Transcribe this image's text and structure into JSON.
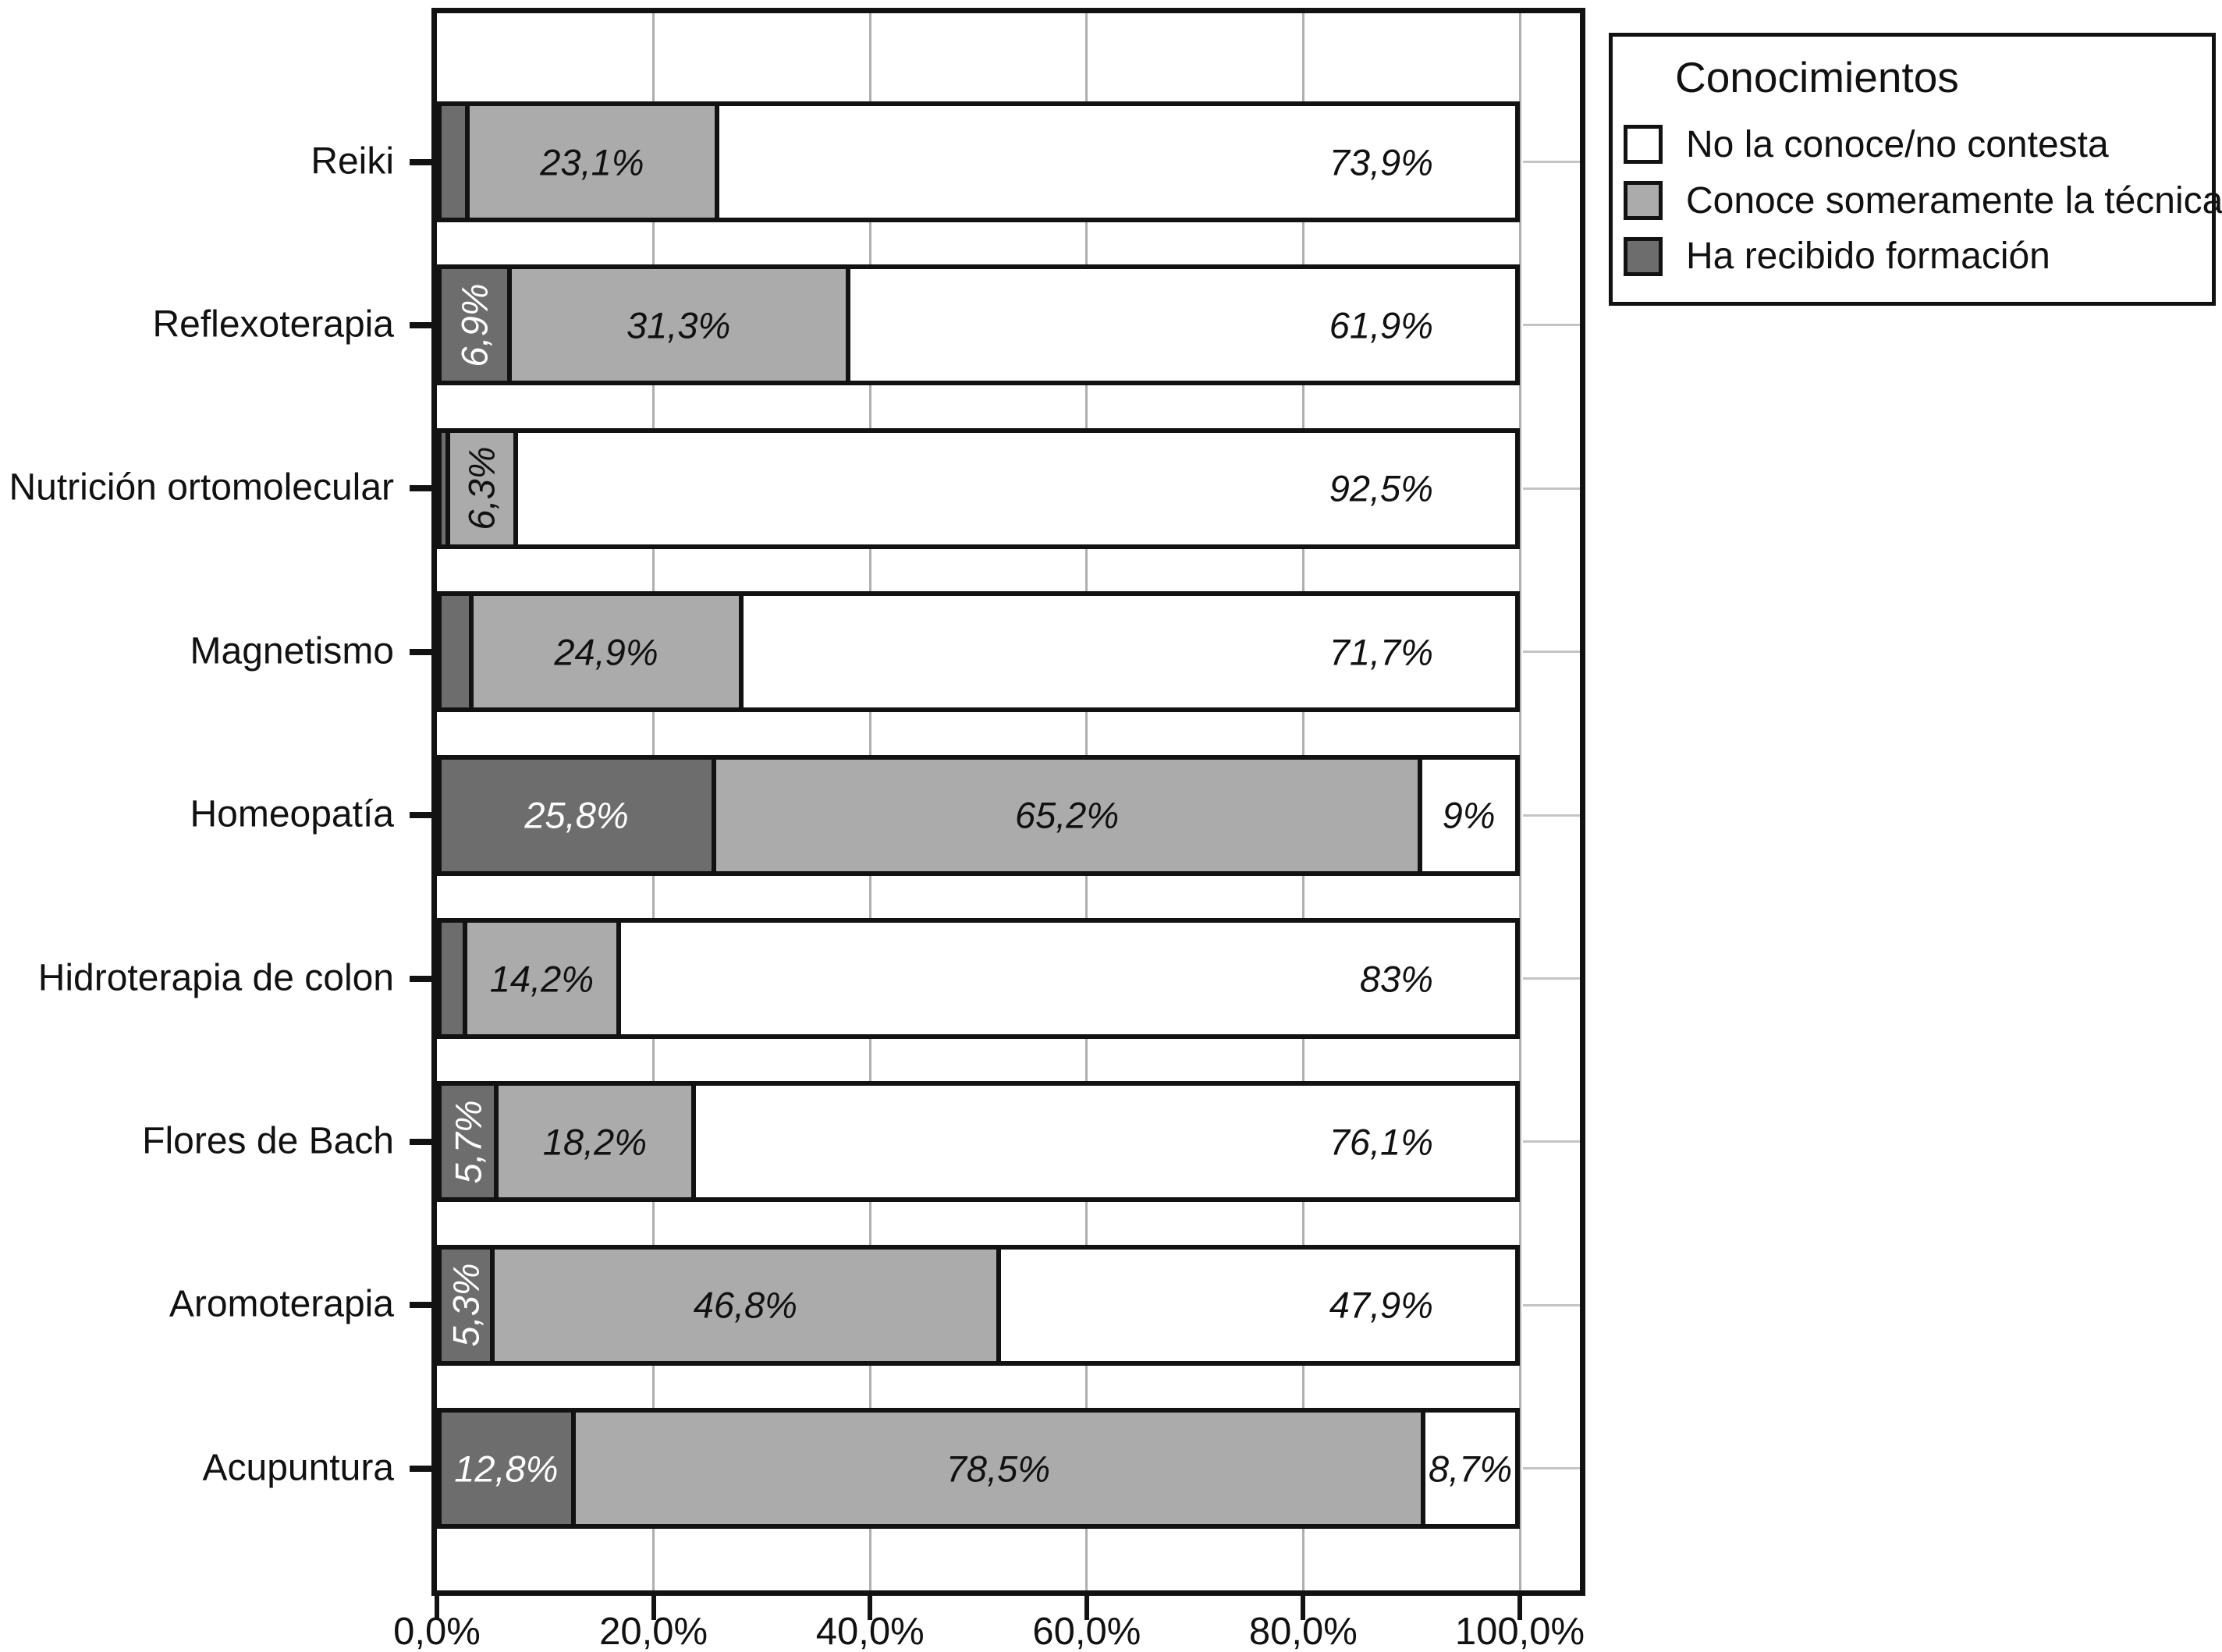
{
  "chart_data": {
    "type": "bar",
    "orientation": "horizontal_stacked",
    "title": "",
    "legend": {
      "title": "Conocimientos",
      "position": "top-right",
      "entries": [
        {
          "label": "No la conoce/no contesta",
          "color": "#FFFFFF"
        },
        {
          "label": "Conoce someramente la técnica",
          "color": "#ABABAB"
        },
        {
          "label": "Ha recibido formación",
          "color": "#6D6D6D"
        }
      ]
    },
    "x_axis": {
      "range": [
        0,
        100
      ],
      "unit": "%",
      "tick_labels": [
        "0,0%",
        "20,0%",
        "40,0%",
        "60,0%",
        "80,0%",
        "100,0%"
      ],
      "grid": true
    },
    "stack_order": [
      "Ha recibido formación",
      "Conoce someramente la técnica",
      "No la conoce/no contesta"
    ],
    "categories": [
      {
        "label": "Reiki",
        "segments": [
          {
            "value": 3.0,
            "text": "",
            "rotated": false
          },
          {
            "value": 23.1,
            "text": "23,1%",
            "rotated": false
          },
          {
            "value": 73.9,
            "text": "73,9%",
            "rotated": false
          }
        ]
      },
      {
        "label": "Reflexoterapia",
        "segments": [
          {
            "value": 6.9,
            "text": "6,9%",
            "rotated": true
          },
          {
            "value": 31.3,
            "text": "31,3%",
            "rotated": false
          },
          {
            "value": 61.9,
            "text": "61,9%",
            "rotated": false
          }
        ]
      },
      {
        "label": "Nutrición ortomolecular",
        "segments": [
          {
            "value": 1.2,
            "text": "",
            "rotated": false
          },
          {
            "value": 6.3,
            "text": "6,3%",
            "rotated": true
          },
          {
            "value": 92.5,
            "text": "92,5%",
            "rotated": false
          }
        ]
      },
      {
        "label": "Magnetismo",
        "segments": [
          {
            "value": 3.4,
            "text": "",
            "rotated": false
          },
          {
            "value": 24.9,
            "text": "24,9%",
            "rotated": false
          },
          {
            "value": 71.7,
            "text": "71,7%",
            "rotated": false
          }
        ]
      },
      {
        "label": "Homeopatía",
        "segments": [
          {
            "value": 25.8,
            "text": "25,8%",
            "rotated": false
          },
          {
            "value": 65.2,
            "text": "65,2%",
            "rotated": false
          },
          {
            "value": 9.0,
            "text": "9%",
            "rotated": false
          }
        ]
      },
      {
        "label": "Hidroterapia de colon",
        "segments": [
          {
            "value": 2.8,
            "text": "",
            "rotated": false
          },
          {
            "value": 14.2,
            "text": "14,2%",
            "rotated": false
          },
          {
            "value": 83.0,
            "text": "83%",
            "rotated": false
          }
        ]
      },
      {
        "label": "Flores de Bach",
        "segments": [
          {
            "value": 5.7,
            "text": "5,7%",
            "rotated": true
          },
          {
            "value": 18.2,
            "text": "18,2%",
            "rotated": false
          },
          {
            "value": 76.1,
            "text": "76,1%",
            "rotated": false
          }
        ]
      },
      {
        "label": "Aromoterapia",
        "segments": [
          {
            "value": 5.3,
            "text": "5,3%",
            "rotated": true
          },
          {
            "value": 46.8,
            "text": "46,8%",
            "rotated": false
          },
          {
            "value": 47.9,
            "text": "47,9%",
            "rotated": false
          }
        ]
      },
      {
        "label": "Acupuntura",
        "segments": [
          {
            "value": 12.8,
            "text": "12,8%",
            "rotated": false
          },
          {
            "value": 78.5,
            "text": "78,5%",
            "rotated": false
          },
          {
            "value": 8.7,
            "text": "8,7%",
            "rotated": false
          }
        ]
      }
    ],
    "colors": {
      "ha_recibido_formacion": "#6D6D6D",
      "conoce_someramente": "#ABABAB",
      "no_la_conoce": "#FFFFFF",
      "segment_border": "#121212",
      "gridline": "#AFAFAF",
      "right_tick": "#C4C4C4",
      "text": "#111111",
      "label_on_dark": "#FFFFFF",
      "label_on_light": "#111111"
    }
  }
}
